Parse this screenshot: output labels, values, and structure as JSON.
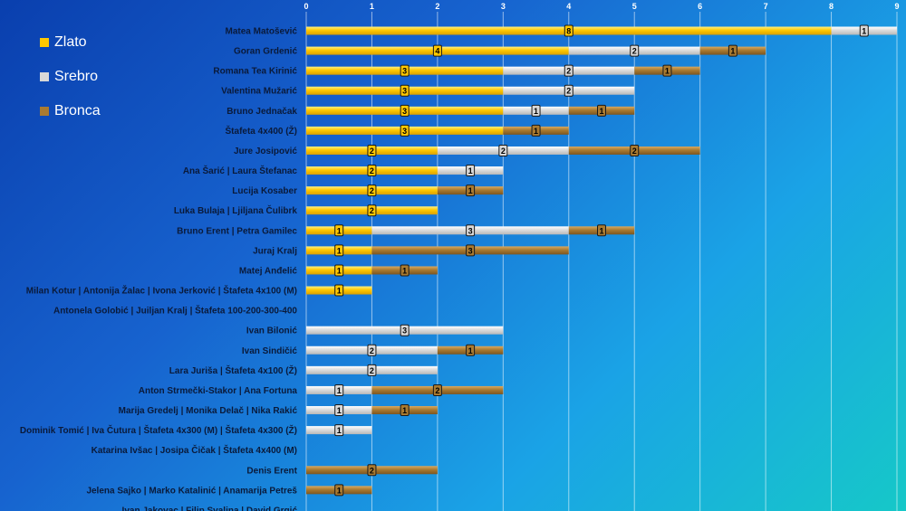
{
  "chart_data": {
    "type": "bar",
    "orientation": "horizontal",
    "stacked": true,
    "xlim": [
      0,
      9
    ],
    "x_ticks": [
      "0",
      "1",
      "2",
      "3",
      "4",
      "5",
      "6",
      "7",
      "8",
      "9"
    ],
    "grid": true,
    "legend_position": "top-left",
    "categories": [
      "Matea Matošević",
      "Goran Grdenić",
      "Romana Tea Kirinić",
      "Valentina Mužarić",
      "Bruno Jednačak",
      "Štafeta 4x400 (Ž)",
      "Jure Josipović",
      "Ana Šarić | Laura Štefanac",
      "Lucija Kosaber",
      "Luka Bulaja | Ljiljana Čulibrk",
      "Bruno Erent | Petra Gamilec",
      "Juraj Kralj",
      "Matej Anđelić",
      "Milan Kotur | Antonija Žalac | Ivona Jerković | Štafeta 4x100 (M)",
      "Antonela Golobić | Juiljan Kralj | Štafeta 100-200-300-400",
      "Ivan Bilonić",
      "Ivan Sindičić",
      "Lara Juriša | Štafeta 4x100 (Ž)",
      "Anton Strmečki-Stakor | Ana Fortuna",
      "Marija Gredelj | Monika Delač | Nika Rakić",
      "Dominik Tomić | Iva Čutura | Štafeta 4x300 (M) | Štafeta 4x300 (Ž)",
      "Katarina Ivšac | Josipa Čičak | Štafeta 4x400 (M)",
      "Denis Erent",
      "Jelena Sajko | Marko Katalinić | Anamarija Petreš",
      "Ivan Jakovac | Filip Svalina | David Grgić"
    ],
    "series": [
      {
        "name": "Zlato",
        "color": "#ffc800",
        "values": [
          8,
          4,
          3,
          3,
          3,
          3,
          2,
          2,
          2,
          2,
          1,
          1,
          1,
          1,
          0,
          0,
          0,
          0,
          0,
          0,
          0,
          0,
          0,
          0,
          0
        ]
      },
      {
        "name": "Srebro",
        "color": "#d8d8d8",
        "values": [
          1,
          2,
          2,
          2,
          1,
          0,
          2,
          1,
          0,
          0,
          3,
          0,
          0,
          0,
          0,
          3,
          2,
          2,
          1,
          1,
          1,
          0,
          0,
          0,
          0
        ]
      },
      {
        "name": "Bronca",
        "color": "#a97a30",
        "values": [
          0,
          1,
          1,
          0,
          1,
          1,
          2,
          0,
          1,
          0,
          1,
          3,
          1,
          0,
          0,
          0,
          1,
          0,
          2,
          1,
          0,
          0,
          2,
          1,
          0
        ]
      }
    ]
  }
}
